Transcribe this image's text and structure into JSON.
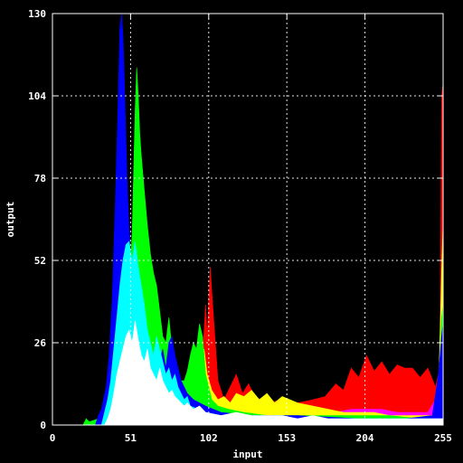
{
  "chart_data": {
    "type": "area",
    "title": "",
    "xlabel": "input",
    "ylabel": "output",
    "xlim": [
      0,
      255
    ],
    "ylim": [
      0,
      130
    ],
    "xticks": [
      0,
      51,
      102,
      153,
      204,
      255
    ],
    "yticks": [
      0,
      26,
      52,
      78,
      104,
      130
    ],
    "x_tick_labels": [
      "0",
      "51",
      "102",
      "153",
      "204",
      "255"
    ],
    "y_tick_labels": [
      "0",
      "26",
      "52",
      "78",
      "104",
      "130"
    ],
    "grid": true,
    "background": "#000000",
    "series": [
      {
        "color": "#ff0000",
        "points": [
          [
            0,
            0
          ],
          [
            95,
            0
          ],
          [
            96,
            12
          ],
          [
            98,
            22
          ],
          [
            100,
            38
          ],
          [
            101,
            28
          ],
          [
            103,
            50
          ],
          [
            104,
            42
          ],
          [
            106,
            28
          ],
          [
            108,
            14
          ],
          [
            112,
            8
          ],
          [
            116,
            12
          ],
          [
            120,
            16
          ],
          [
            124,
            10
          ],
          [
            128,
            13
          ],
          [
            132,
            9
          ],
          [
            140,
            7
          ],
          [
            150,
            8
          ],
          [
            160,
            7
          ],
          [
            170,
            8
          ],
          [
            178,
            9
          ],
          [
            185,
            13
          ],
          [
            190,
            11
          ],
          [
            195,
            18
          ],
          [
            200,
            15
          ],
          [
            205,
            22
          ],
          [
            210,
            17
          ],
          [
            215,
            20
          ],
          [
            220,
            16
          ],
          [
            225,
            19
          ],
          [
            230,
            18
          ],
          [
            235,
            18
          ],
          [
            240,
            15
          ],
          [
            245,
            18
          ],
          [
            250,
            12
          ],
          [
            253,
            18
          ],
          [
            254,
            104
          ],
          [
            255,
            108
          ],
          [
            255,
            0
          ]
        ]
      },
      {
        "color": "#ff00ff",
        "points": [
          [
            0,
            0
          ],
          [
            100,
            0
          ],
          [
            105,
            6
          ],
          [
            120,
            6
          ],
          [
            140,
            4
          ],
          [
            160,
            4
          ],
          [
            175,
            4
          ],
          [
            185,
            4
          ],
          [
            195,
            5
          ],
          [
            205,
            5
          ],
          [
            215,
            5
          ],
          [
            225,
            4
          ],
          [
            235,
            4
          ],
          [
            245,
            4
          ],
          [
            250,
            8
          ],
          [
            253,
            14
          ],
          [
            254,
            26
          ],
          [
            255,
            30
          ],
          [
            255,
            0
          ]
        ]
      },
      {
        "color": "#ffff00",
        "points": [
          [
            0,
            0
          ],
          [
            88,
            0
          ],
          [
            90,
            12
          ],
          [
            92,
            16
          ],
          [
            95,
            22
          ],
          [
            97,
            20
          ],
          [
            99,
            24
          ],
          [
            101,
            16
          ],
          [
            104,
            11
          ],
          [
            108,
            8
          ],
          [
            112,
            9
          ],
          [
            116,
            7
          ],
          [
            120,
            10
          ],
          [
            125,
            9
          ],
          [
            130,
            11
          ],
          [
            135,
            8
          ],
          [
            140,
            10
          ],
          [
            145,
            7
          ],
          [
            150,
            9
          ],
          [
            160,
            7
          ],
          [
            170,
            6
          ],
          [
            180,
            5
          ],
          [
            190,
            4
          ],
          [
            200,
            4
          ],
          [
            210,
            4
          ],
          [
            220,
            3
          ],
          [
            230,
            3
          ],
          [
            240,
            3
          ],
          [
            248,
            3
          ],
          [
            252,
            10
          ],
          [
            254,
            48
          ],
          [
            255,
            64
          ],
          [
            255,
            0
          ]
        ]
      },
      {
        "color": "#00ff00",
        "points": [
          [
            0,
            0
          ],
          [
            20,
            0
          ],
          [
            22,
            2
          ],
          [
            24,
            1
          ],
          [
            30,
            2
          ],
          [
            38,
            6
          ],
          [
            42,
            14
          ],
          [
            46,
            26
          ],
          [
            50,
            42
          ],
          [
            52,
            60
          ],
          [
            53,
            80
          ],
          [
            54,
            100
          ],
          [
            55,
            113
          ],
          [
            56,
            104
          ],
          [
            57,
            92
          ],
          [
            58,
            85
          ],
          [
            60,
            74
          ],
          [
            62,
            63
          ],
          [
            64,
            54
          ],
          [
            66,
            48
          ],
          [
            68,
            44
          ],
          [
            70,
            36
          ],
          [
            72,
            28
          ],
          [
            74,
            26
          ],
          [
            76,
            34
          ],
          [
            78,
            24
          ],
          [
            80,
            20
          ],
          [
            82,
            16
          ],
          [
            84,
            14
          ],
          [
            86,
            14
          ],
          [
            88,
            17
          ],
          [
            90,
            22
          ],
          [
            92,
            26
          ],
          [
            94,
            24
          ],
          [
            96,
            32
          ],
          [
            98,
            28
          ],
          [
            100,
            16
          ],
          [
            102,
            12
          ],
          [
            104,
            8
          ],
          [
            108,
            6
          ],
          [
            115,
            5
          ],
          [
            125,
            4
          ],
          [
            140,
            3
          ],
          [
            160,
            3
          ],
          [
            180,
            3
          ],
          [
            200,
            3
          ],
          [
            220,
            3
          ],
          [
            240,
            2
          ],
          [
            250,
            3
          ],
          [
            253,
            20
          ],
          [
            254,
            34
          ],
          [
            255,
            38
          ],
          [
            255,
            0
          ]
        ]
      },
      {
        "color": "#0000ff",
        "points": [
          [
            0,
            0
          ],
          [
            28,
            0
          ],
          [
            30,
            3
          ],
          [
            32,
            5
          ],
          [
            35,
            12
          ],
          [
            37,
            22
          ],
          [
            39,
            40
          ],
          [
            41,
            70
          ],
          [
            43,
            104
          ],
          [
            44,
            125
          ],
          [
            45,
            132
          ],
          [
            46,
            124
          ],
          [
            47,
            108
          ],
          [
            48,
            90
          ],
          [
            49,
            74
          ],
          [
            50,
            62
          ],
          [
            52,
            48
          ],
          [
            54,
            38
          ],
          [
            56,
            30
          ],
          [
            58,
            24
          ],
          [
            60,
            20
          ],
          [
            62,
            22
          ],
          [
            64,
            19
          ],
          [
            66,
            17
          ],
          [
            68,
            16
          ],
          [
            70,
            20
          ],
          [
            72,
            24
          ],
          [
            74,
            18
          ],
          [
            76,
            26
          ],
          [
            78,
            28
          ],
          [
            80,
            22
          ],
          [
            82,
            18
          ],
          [
            84,
            14
          ],
          [
            86,
            12
          ],
          [
            88,
            10
          ],
          [
            92,
            8
          ],
          [
            100,
            6
          ],
          [
            110,
            4
          ],
          [
            130,
            3
          ],
          [
            160,
            3
          ],
          [
            200,
            2
          ],
          [
            230,
            2
          ],
          [
            248,
            3
          ],
          [
            252,
            16
          ],
          [
            254,
            28
          ],
          [
            255,
            32
          ],
          [
            255,
            0
          ]
        ]
      },
      {
        "color": "#00ffff",
        "points": [
          [
            0,
            0
          ],
          [
            32,
            0
          ],
          [
            34,
            4
          ],
          [
            36,
            8
          ],
          [
            38,
            14
          ],
          [
            40,
            24
          ],
          [
            42,
            34
          ],
          [
            44,
            44
          ],
          [
            46,
            52
          ],
          [
            48,
            57
          ],
          [
            50,
            58
          ],
          [
            52,
            52
          ],
          [
            54,
            58
          ],
          [
            56,
            50
          ],
          [
            58,
            44
          ],
          [
            60,
            38
          ],
          [
            62,
            30
          ],
          [
            64,
            26
          ],
          [
            66,
            22
          ],
          [
            68,
            28
          ],
          [
            70,
            24
          ],
          [
            72,
            20
          ],
          [
            74,
            16
          ],
          [
            76,
            18
          ],
          [
            78,
            14
          ],
          [
            80,
            16
          ],
          [
            82,
            12
          ],
          [
            84,
            10
          ],
          [
            86,
            8
          ],
          [
            88,
            9
          ],
          [
            90,
            6
          ],
          [
            95,
            5
          ],
          [
            100,
            4
          ],
          [
            110,
            3
          ],
          [
            130,
            2
          ],
          [
            160,
            2
          ],
          [
            200,
            2
          ],
          [
            240,
            2
          ],
          [
            255,
            2
          ],
          [
            255,
            0
          ]
        ]
      },
      {
        "color": "#ffffff",
        "points": [
          [
            0,
            0
          ],
          [
            34,
            0
          ],
          [
            36,
            2
          ],
          [
            38,
            5
          ],
          [
            40,
            10
          ],
          [
            42,
            16
          ],
          [
            44,
            20
          ],
          [
            46,
            24
          ],
          [
            48,
            28
          ],
          [
            50,
            30
          ],
          [
            52,
            26
          ],
          [
            54,
            33
          ],
          [
            56,
            27
          ],
          [
            58,
            22
          ],
          [
            60,
            20
          ],
          [
            62,
            24
          ],
          [
            64,
            18
          ],
          [
            66,
            16
          ],
          [
            68,
            14
          ],
          [
            70,
            18
          ],
          [
            72,
            14
          ],
          [
            74,
            12
          ],
          [
            76,
            10
          ],
          [
            78,
            11
          ],
          [
            80,
            9
          ],
          [
            82,
            8
          ],
          [
            84,
            7
          ],
          [
            86,
            6
          ],
          [
            88,
            7
          ],
          [
            92,
            5
          ],
          [
            96,
            6
          ],
          [
            100,
            4
          ],
          [
            110,
            3
          ],
          [
            120,
            4
          ],
          [
            130,
            3
          ],
          [
            140,
            3
          ],
          [
            150,
            3
          ],
          [
            160,
            2
          ],
          [
            170,
            3
          ],
          [
            180,
            2
          ],
          [
            190,
            2
          ],
          [
            200,
            2
          ],
          [
            210,
            2
          ],
          [
            220,
            2
          ],
          [
            230,
            2
          ],
          [
            240,
            2
          ],
          [
            250,
            2
          ],
          [
            255,
            2
          ],
          [
            255,
            0
          ]
        ]
      }
    ]
  }
}
